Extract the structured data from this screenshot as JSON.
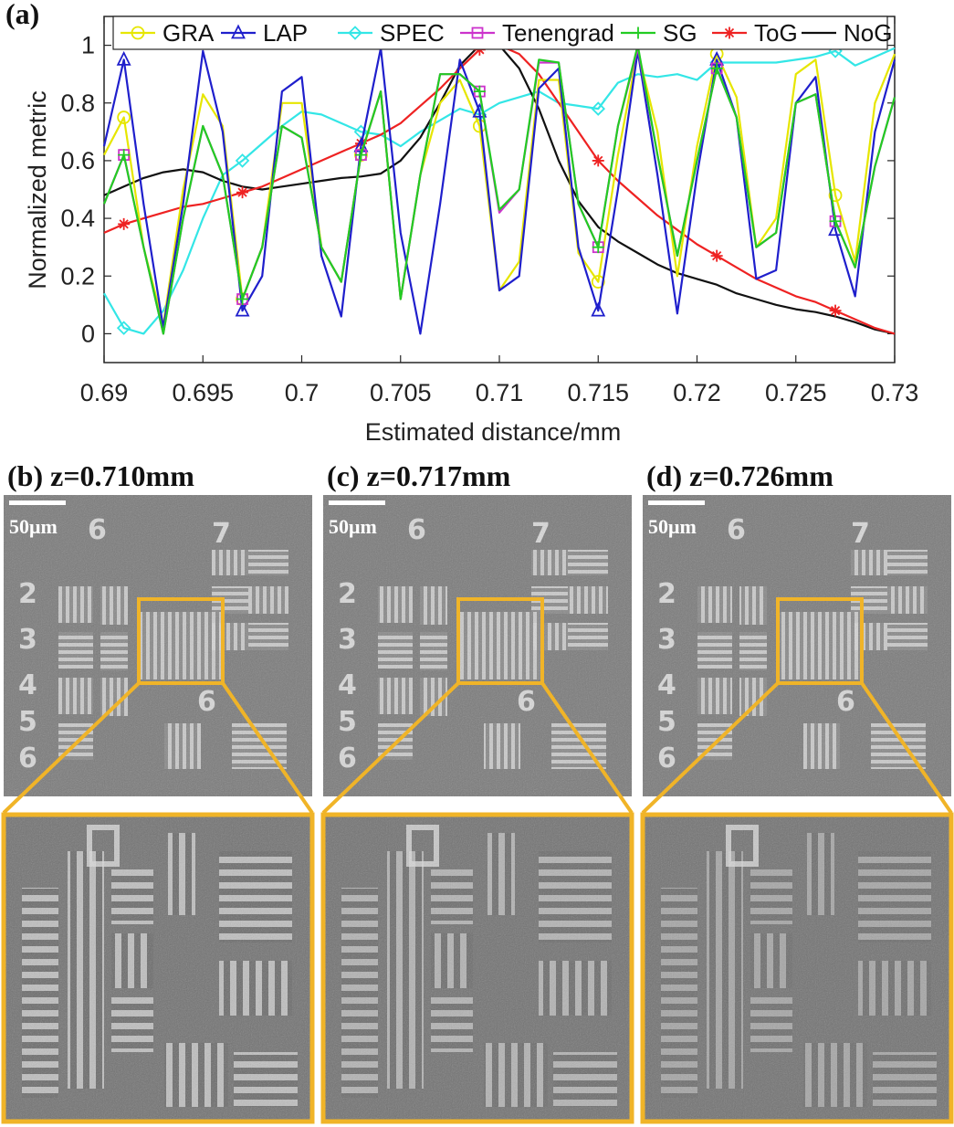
{
  "chart_data": {
    "type": "line",
    "panel_label": "(a)",
    "xlabel": "Estimated distance/mm",
    "ylabel": "Normalized metric",
    "xlim": [
      0.69,
      0.73
    ],
    "ylim": [
      -0.1,
      1.1
    ],
    "xticks": [
      "0.69",
      "0.695",
      "0.7",
      "0.705",
      "0.71",
      "0.715",
      "0.72",
      "0.725",
      "0.73"
    ],
    "yticks": [
      "0",
      "0.2",
      "0.4",
      "0.6",
      "0.8",
      "1"
    ],
    "legend_position": "top",
    "series": [
      {
        "name": "GRA",
        "color": "#e6e600",
        "marker": "circle",
        "x": [
          0.69,
          0.691,
          0.692,
          0.693,
          0.694,
          0.695,
          0.696,
          0.697,
          0.698,
          0.699,
          0.7,
          0.701,
          0.702,
          0.703,
          0.704,
          0.705,
          0.706,
          0.707,
          0.708,
          0.709,
          0.71,
          0.711,
          0.712,
          0.713,
          0.714,
          0.715,
          0.716,
          0.717,
          0.718,
          0.719,
          0.72,
          0.721,
          0.722,
          0.723,
          0.724,
          0.725,
          0.726,
          0.727,
          0.728,
          0.729,
          0.73
        ],
        "y": [
          0.62,
          0.75,
          0.3,
          0.03,
          0.5,
          0.83,
          0.72,
          0.12,
          0.3,
          0.8,
          0.8,
          0.3,
          0.18,
          0.62,
          0.84,
          0.12,
          0.55,
          0.8,
          0.88,
          0.72,
          0.15,
          0.25,
          0.88,
          0.88,
          0.28,
          0.18,
          0.62,
          0.98,
          0.7,
          0.2,
          0.65,
          0.97,
          0.82,
          0.3,
          0.4,
          0.9,
          0.95,
          0.48,
          0.25,
          0.8,
          0.97
        ],
        "marker_x": [
          0.691,
          0.697,
          0.703,
          0.709,
          0.715,
          0.721,
          0.727
        ]
      },
      {
        "name": "LAP",
        "color": "#1f1fcc",
        "marker": "triangle",
        "x": [
          0.69,
          0.691,
          0.692,
          0.693,
          0.694,
          0.695,
          0.696,
          0.697,
          0.698,
          0.699,
          0.7,
          0.701,
          0.702,
          0.703,
          0.704,
          0.705,
          0.706,
          0.707,
          0.708,
          0.709,
          0.71,
          0.711,
          0.712,
          0.713,
          0.714,
          0.715,
          0.716,
          0.717,
          0.718,
          0.719,
          0.72,
          0.721,
          0.722,
          0.723,
          0.724,
          0.725,
          0.726,
          0.727,
          0.728,
          0.729,
          0.73
        ],
        "y": [
          0.65,
          0.95,
          0.45,
          0.02,
          0.45,
          0.98,
          0.7,
          0.08,
          0.2,
          0.84,
          0.89,
          0.27,
          0.06,
          0.65,
          0.99,
          0.35,
          0.0,
          0.45,
          0.95,
          0.77,
          0.15,
          0.2,
          0.85,
          0.92,
          0.3,
          0.08,
          0.5,
          0.98,
          0.55,
          0.07,
          0.55,
          0.95,
          0.75,
          0.19,
          0.22,
          0.8,
          0.89,
          0.36,
          0.13,
          0.7,
          0.95
        ],
        "marker_x": [
          0.691,
          0.697,
          0.703,
          0.709,
          0.715,
          0.721,
          0.727
        ]
      },
      {
        "name": "SPEC",
        "color": "#33e6e6",
        "marker": "diamond",
        "x": [
          0.69,
          0.691,
          0.692,
          0.693,
          0.694,
          0.695,
          0.696,
          0.697,
          0.698,
          0.699,
          0.7,
          0.701,
          0.702,
          0.703,
          0.704,
          0.705,
          0.706,
          0.707,
          0.708,
          0.709,
          0.71,
          0.711,
          0.712,
          0.713,
          0.714,
          0.715,
          0.716,
          0.717,
          0.718,
          0.719,
          0.72,
          0.721,
          0.722,
          0.723,
          0.724,
          0.725,
          0.726,
          0.727,
          0.728,
          0.729,
          0.73
        ],
        "y": [
          0.14,
          0.02,
          0.0,
          0.08,
          0.22,
          0.4,
          0.55,
          0.6,
          0.66,
          0.72,
          0.77,
          0.76,
          0.73,
          0.7,
          0.69,
          0.65,
          0.7,
          0.74,
          0.78,
          0.76,
          0.8,
          0.82,
          0.84,
          0.8,
          0.79,
          0.78,
          0.87,
          0.9,
          0.89,
          0.9,
          0.88,
          0.94,
          0.94,
          0.94,
          0.94,
          0.95,
          0.96,
          0.98,
          0.93,
          0.96,
          0.99
        ],
        "marker_x": [
          0.691,
          0.697,
          0.703,
          0.709,
          0.715,
          0.721,
          0.727
        ]
      },
      {
        "name": "Tenengrad",
        "color": "#cc33cc",
        "marker": "square",
        "x": [
          0.69,
          0.691,
          0.692,
          0.693,
          0.694,
          0.695,
          0.696,
          0.697,
          0.698,
          0.699,
          0.7,
          0.701,
          0.702,
          0.703,
          0.704,
          0.705,
          0.706,
          0.707,
          0.708,
          0.709,
          0.71,
          0.711,
          0.712,
          0.713,
          0.714,
          0.715,
          0.716,
          0.717,
          0.718,
          0.719,
          0.72,
          0.721,
          0.722,
          0.723,
          0.724,
          0.725,
          0.726,
          0.727,
          0.728,
          0.729,
          0.73
        ],
        "y": [
          0.45,
          0.62,
          0.3,
          0.0,
          0.4,
          0.72,
          0.55,
          0.12,
          0.3,
          0.72,
          0.68,
          0.3,
          0.18,
          0.62,
          0.84,
          0.12,
          0.55,
          0.9,
          0.9,
          0.84,
          0.42,
          0.5,
          0.94,
          0.94,
          0.45,
          0.3,
          0.72,
          0.99,
          0.62,
          0.27,
          0.6,
          0.92,
          0.75,
          0.3,
          0.35,
          0.8,
          0.83,
          0.39,
          0.23,
          0.58,
          0.82
        ],
        "marker_x": [
          0.691,
          0.697,
          0.703,
          0.709,
          0.715,
          0.721,
          0.727
        ]
      },
      {
        "name": "SG",
        "color": "#22cc22",
        "marker": "plus",
        "x": [
          0.69,
          0.691,
          0.692,
          0.693,
          0.694,
          0.695,
          0.696,
          0.697,
          0.698,
          0.699,
          0.7,
          0.701,
          0.702,
          0.703,
          0.704,
          0.705,
          0.706,
          0.707,
          0.708,
          0.709,
          0.71,
          0.711,
          0.712,
          0.713,
          0.714,
          0.715,
          0.716,
          0.717,
          0.718,
          0.719,
          0.72,
          0.721,
          0.722,
          0.723,
          0.724,
          0.725,
          0.726,
          0.727,
          0.728,
          0.729,
          0.73
        ],
        "y": [
          0.45,
          0.62,
          0.3,
          0.0,
          0.4,
          0.72,
          0.55,
          0.12,
          0.3,
          0.72,
          0.68,
          0.3,
          0.18,
          0.62,
          0.84,
          0.12,
          0.55,
          0.9,
          0.9,
          0.84,
          0.43,
          0.5,
          0.95,
          0.94,
          0.45,
          0.3,
          0.72,
          1.0,
          0.62,
          0.27,
          0.6,
          0.92,
          0.75,
          0.3,
          0.35,
          0.8,
          0.83,
          0.39,
          0.23,
          0.58,
          0.82
        ],
        "marker_x": [
          0.691,
          0.697,
          0.703,
          0.709,
          0.715,
          0.721,
          0.727
        ]
      },
      {
        "name": "ToG",
        "color": "#ee2222",
        "marker": "star",
        "x": [
          0.69,
          0.691,
          0.692,
          0.693,
          0.694,
          0.695,
          0.696,
          0.697,
          0.698,
          0.699,
          0.7,
          0.701,
          0.702,
          0.703,
          0.704,
          0.705,
          0.706,
          0.707,
          0.708,
          0.709,
          0.71,
          0.711,
          0.712,
          0.713,
          0.714,
          0.715,
          0.716,
          0.717,
          0.718,
          0.719,
          0.72,
          0.721,
          0.722,
          0.723,
          0.724,
          0.725,
          0.726,
          0.727,
          0.728,
          0.729,
          0.73
        ],
        "y": [
          0.35,
          0.38,
          0.4,
          0.42,
          0.44,
          0.45,
          0.47,
          0.49,
          0.51,
          0.54,
          0.57,
          0.6,
          0.63,
          0.66,
          0.69,
          0.73,
          0.79,
          0.85,
          0.92,
          0.985,
          1.0,
          0.97,
          0.9,
          0.8,
          0.7,
          0.6,
          0.53,
          0.47,
          0.41,
          0.36,
          0.31,
          0.27,
          0.23,
          0.19,
          0.16,
          0.13,
          0.11,
          0.08,
          0.05,
          0.02,
          0.0
        ],
        "marker_x": [
          0.691,
          0.697,
          0.703,
          0.709,
          0.715,
          0.721,
          0.727
        ]
      },
      {
        "name": "NoG",
        "color": "#111111",
        "marker": "none",
        "x": [
          0.69,
          0.691,
          0.692,
          0.693,
          0.694,
          0.695,
          0.696,
          0.697,
          0.698,
          0.699,
          0.7,
          0.701,
          0.702,
          0.703,
          0.704,
          0.705,
          0.706,
          0.707,
          0.708,
          0.709,
          0.71,
          0.711,
          0.712,
          0.713,
          0.714,
          0.715,
          0.716,
          0.717,
          0.718,
          0.719,
          0.72,
          0.721,
          0.722,
          0.723,
          0.724,
          0.725,
          0.726,
          0.727,
          0.728,
          0.729,
          0.73
        ],
        "y": [
          0.48,
          0.51,
          0.54,
          0.56,
          0.57,
          0.56,
          0.53,
          0.51,
          0.5,
          0.51,
          0.52,
          0.53,
          0.54,
          0.545,
          0.555,
          0.6,
          0.68,
          0.8,
          0.93,
          1.0,
          1.0,
          0.92,
          0.78,
          0.6,
          0.46,
          0.37,
          0.32,
          0.28,
          0.24,
          0.21,
          0.19,
          0.17,
          0.14,
          0.12,
          0.1,
          0.085,
          0.075,
          0.06,
          0.04,
          0.015,
          0.0
        ],
        "marker_x": []
      }
    ]
  },
  "panels": [
    {
      "label": "(b) z=0.710mm",
      "scale": "50μm"
    },
    {
      "label": "(c) z=0.717mm",
      "scale": "50μm"
    },
    {
      "label": "(d) z=0.726mm",
      "scale": "50μm"
    }
  ],
  "colors": {
    "highlight": "#f0b428",
    "frame": "#f0b428"
  }
}
